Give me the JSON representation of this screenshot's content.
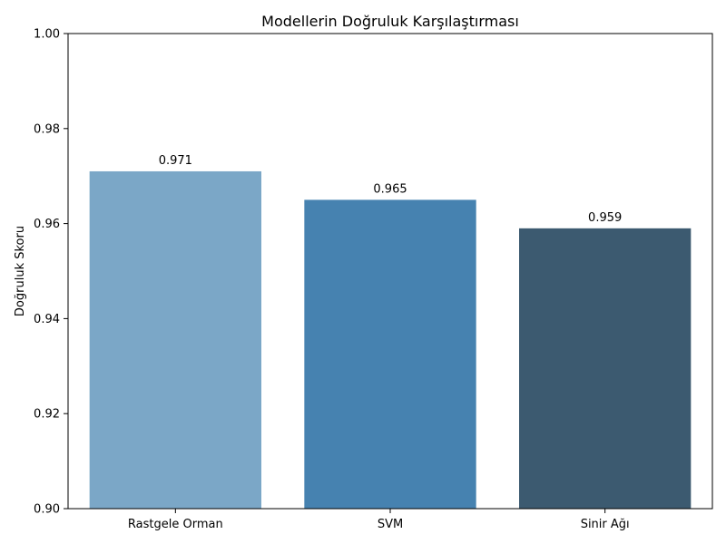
{
  "chart_data": {
    "type": "bar",
    "title": "Modellerin Doğruluk Karşılaştırması",
    "xlabel": "",
    "ylabel": "Doğruluk Skoru",
    "categories": [
      "Rastgele Orman",
      "SVM",
      "Sinir Ağı"
    ],
    "values": [
      0.971,
      0.965,
      0.959
    ],
    "data_labels": [
      "0.971",
      "0.965",
      "0.959"
    ],
    "colors": [
      "#7ba7c7",
      "#4682b0",
      "#3c5a70"
    ],
    "ylim": [
      0.9,
      1.0
    ],
    "yticks": [
      0.9,
      0.92,
      0.94,
      0.96,
      0.98,
      1.0
    ],
    "ytick_labels": [
      "0.90",
      "0.92",
      "0.94",
      "0.96",
      "0.98",
      "1.00"
    ],
    "grid": false,
    "legend": "none"
  }
}
